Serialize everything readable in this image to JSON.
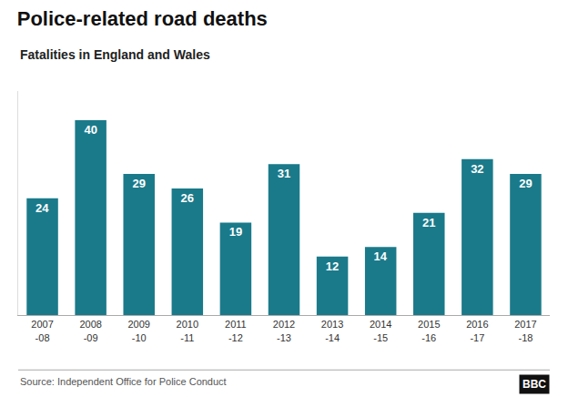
{
  "chart_data": {
    "type": "bar",
    "title": "Police-related road deaths",
    "subtitle": "Fatalities in England and Wales",
    "annotations": [
      "Source: Independent Office for Police Conduct",
      "BBC"
    ],
    "categories": [
      "2007\n-08",
      "2008\n-09",
      "2009\n-10",
      "2010\n-11",
      "2011\n-12",
      "2012\n-13",
      "2013\n-14",
      "2014\n-15",
      "2015\n-16",
      "2016\n-17",
      "2017\n-18"
    ],
    "values": [
      24,
      40,
      29,
      26,
      19,
      31,
      12,
      14,
      21,
      32,
      29
    ],
    "color": "#1a7a8a",
    "ylim": [
      0,
      46
    ],
    "grid": false,
    "data_labels": true,
    "tick_labels": "x"
  }
}
